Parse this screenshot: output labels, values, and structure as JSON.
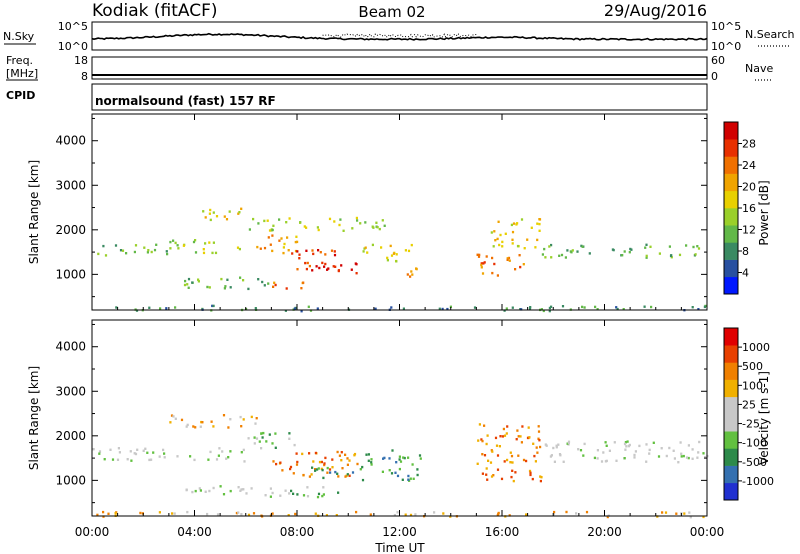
{
  "header": {
    "station": "Kodiak (fitACF)",
    "beam": "Beam 02",
    "date": "29/Aug/2016"
  },
  "top_panels": {
    "nsky_label": "N.Sky",
    "nsearch_label": "N.Search",
    "left_ticks": [
      "10^5",
      "10^0"
    ],
    "right_ticks": [
      "10^5",
      "10^0"
    ],
    "freq_label_1": "Freq.",
    "freq_label_2": "[MHz]",
    "freq_ticks": [
      "18",
      "8"
    ],
    "nave_label": "Nave",
    "nave_ticks": [
      "60",
      "0"
    ],
    "cpid_label": "CPID",
    "cpid_text": "normalsound (fast) 157 RF"
  },
  "x_axis": {
    "label": "Time UT",
    "ticks": [
      "00:00",
      "04:00",
      "08:00",
      "12:00",
      "16:00",
      "20:00",
      "00:00"
    ]
  },
  "chart_data": [
    {
      "type": "heatmap",
      "panel": "power",
      "xlabel": "Time UT",
      "ylabel": "Slant Range [km]",
      "x_range_hours": [
        0,
        24
      ],
      "y_range_km": [
        200,
        4600
      ],
      "y_ticks": [
        1000,
        2000,
        3000,
        4000
      ],
      "colorbar_label": "Power [dB]",
      "colorbar_ticks": [
        "28",
        "24",
        "20",
        "16",
        "12",
        "8",
        "4"
      ],
      "colorbar_colors": [
        "#0018ff",
        "#2850a0",
        "#3a8a62",
        "#62b848",
        "#9ad02a",
        "#e8d000",
        "#f0a400",
        "#f07000",
        "#e83000",
        "#d00000"
      ],
      "scatter_regions": [
        {
          "t0": 0.0,
          "t1": 3.0,
          "r0": 1450,
          "r1": 1700,
          "level": 3
        },
        {
          "t0": 3.0,
          "t1": 6.0,
          "r0": 1500,
          "r1": 1800,
          "level": 4
        },
        {
          "t0": 4.0,
          "t1": 6.0,
          "r0": 2200,
          "r1": 2500,
          "level": 5
        },
        {
          "t0": 6.0,
          "t1": 8.0,
          "r0": 1500,
          "r1": 1900,
          "level": 6
        },
        {
          "t0": 7.5,
          "t1": 9.5,
          "r0": 1100,
          "r1": 1600,
          "level": 8
        },
        {
          "t0": 8.5,
          "t1": 10.5,
          "r0": 1050,
          "r1": 1350,
          "level": 9
        },
        {
          "t0": 7.0,
          "t1": 9.0,
          "r0": 700,
          "r1": 850,
          "level": 7
        },
        {
          "t0": 3.5,
          "t1": 7.0,
          "r0": 700,
          "r1": 1000,
          "level": 3
        },
        {
          "t0": 6.0,
          "t1": 11.5,
          "r0": 2000,
          "r1": 2300,
          "level": 4
        },
        {
          "t0": 10.5,
          "t1": 12.5,
          "r0": 1300,
          "r1": 1700,
          "level": 5
        },
        {
          "t0": 12.0,
          "t1": 12.8,
          "r0": 950,
          "r1": 1300,
          "level": 6
        },
        {
          "t0": 15.0,
          "t1": 17.0,
          "r0": 1000,
          "r1": 1500,
          "level": 7
        },
        {
          "t0": 15.5,
          "t1": 17.5,
          "r0": 1600,
          "r1": 2300,
          "level": 5
        },
        {
          "t0": 17.5,
          "t1": 24.0,
          "r0": 1400,
          "r1": 1700,
          "level": 3
        },
        {
          "t0": 0.0,
          "t1": 24.0,
          "r0": 200,
          "r1": 320,
          "level": 2
        }
      ]
    },
    {
      "type": "heatmap",
      "panel": "velocity",
      "xlabel": "Time UT",
      "ylabel": "Slant Range [km]",
      "x_range_hours": [
        0,
        24
      ],
      "y_range_km": [
        200,
        4600
      ],
      "y_ticks": [
        1000,
        2000,
        3000,
        4000
      ],
      "colorbar_label": "Velocity [m s-1]",
      "colorbar_ticks": [
        "1000",
        "500",
        "100",
        "25",
        "-25",
        "-100",
        "-500",
        "-1000"
      ],
      "colorbar_colors": [
        "#2030d0",
        "#3470b0",
        "#2d8a4a",
        "#62c040",
        "#c8c8c8",
        "#c8c8c8",
        "#f0b000",
        "#f08000",
        "#e84000",
        "#e00000"
      ],
      "scatter_regions": [
        {
          "t0": 0.0,
          "t1": 6.0,
          "r0": 1450,
          "r1": 1750,
          "level": 4
        },
        {
          "t0": 3.0,
          "t1": 6.5,
          "r0": 2200,
          "r1": 2500,
          "level": 6
        },
        {
          "t0": 6.0,
          "t1": 8.0,
          "r0": 1700,
          "r1": 2100,
          "level": 3
        },
        {
          "t0": 7.0,
          "t1": 10.5,
          "r0": 1100,
          "r1": 1700,
          "level": 7
        },
        {
          "t0": 8.5,
          "t1": 10.5,
          "r0": 1050,
          "r1": 1350,
          "level": 2
        },
        {
          "t0": 3.5,
          "t1": 9.0,
          "r0": 650,
          "r1": 900,
          "level": 4
        },
        {
          "t0": 7.5,
          "t1": 10.0,
          "r0": 700,
          "r1": 800,
          "level": 3
        },
        {
          "t0": 10.5,
          "t1": 12.8,
          "r0": 1000,
          "r1": 1700,
          "level": 2
        },
        {
          "t0": 15.0,
          "t1": 17.5,
          "r0": 1000,
          "r1": 2300,
          "level": 7
        },
        {
          "t0": 17.5,
          "t1": 24.0,
          "r0": 1400,
          "r1": 1900,
          "level": 4
        },
        {
          "t0": 0.0,
          "t1": 24.0,
          "r0": 200,
          "r1": 320,
          "level": 6
        }
      ]
    }
  ]
}
